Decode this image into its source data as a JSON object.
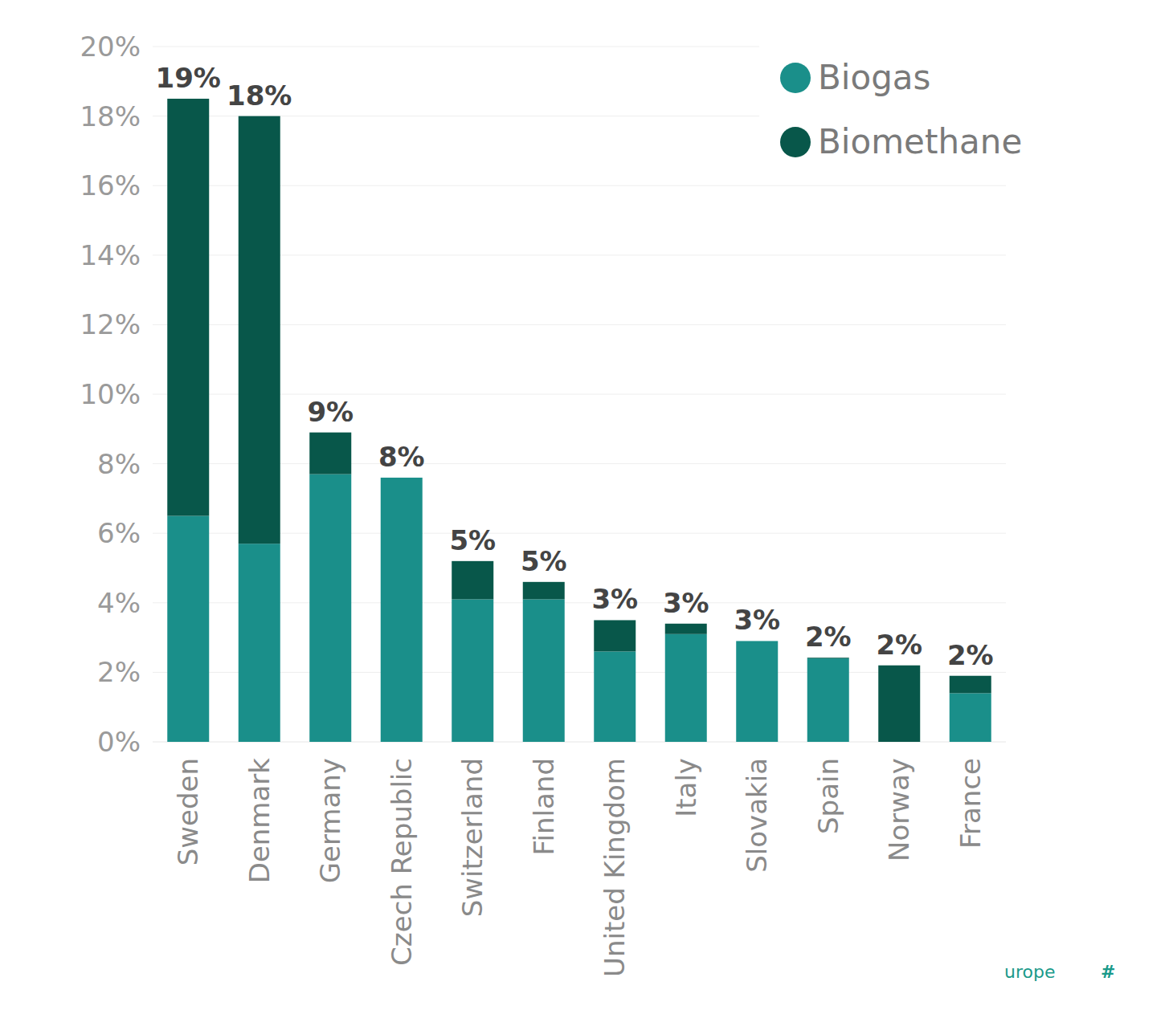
{
  "chart_data": {
    "type": "bar",
    "stacked": true,
    "grid": true,
    "legend": "top-right",
    "categories": [
      "Sweden",
      "Denmark",
      "Germany",
      "Czech Republic",
      "Switzerland",
      "Finland",
      "United Kingdom",
      "Italy",
      "Slovakia",
      "Spain",
      "Norway",
      "France"
    ],
    "series": [
      {
        "name": "Biogas",
        "color": "#1a8f8a",
        "values": [
          6.5,
          5.7,
          7.7,
          7.6,
          4.1,
          4.1,
          2.6,
          3.1,
          2.9,
          2.4,
          0,
          1.4
        ]
      },
      {
        "name": "Biomethane",
        "color": "#08574a",
        "values": [
          12.0,
          12.3,
          1.2,
          0,
          1.1,
          0.5,
          0.9,
          0.3,
          0,
          0.02,
          2.2,
          0.5
        ]
      }
    ],
    "total_labels": [
      "19%",
      "18%",
      "9%",
      "8%",
      "5%",
      "5%",
      "3%",
      "3%",
      "3%",
      "2%",
      "2%",
      "2%"
    ],
    "ylim": [
      0,
      20
    ],
    "yticks": [
      {
        "value": 0,
        "label": "0%"
      },
      {
        "value": 2,
        "label": "2%"
      },
      {
        "value": 4,
        "label": "4%"
      },
      {
        "value": 6,
        "label": "6%"
      },
      {
        "value": 8,
        "label": "8%"
      },
      {
        "value": 10,
        "label": "10%"
      },
      {
        "value": 12,
        "label": "12%"
      },
      {
        "value": 14,
        "label": "14%"
      },
      {
        "value": 16,
        "label": "16%"
      },
      {
        "value": 18,
        "label": "18%"
      },
      {
        "value": 20,
        "label": "20%"
      }
    ],
    "footer": [
      "urope",
      "#"
    ]
  }
}
